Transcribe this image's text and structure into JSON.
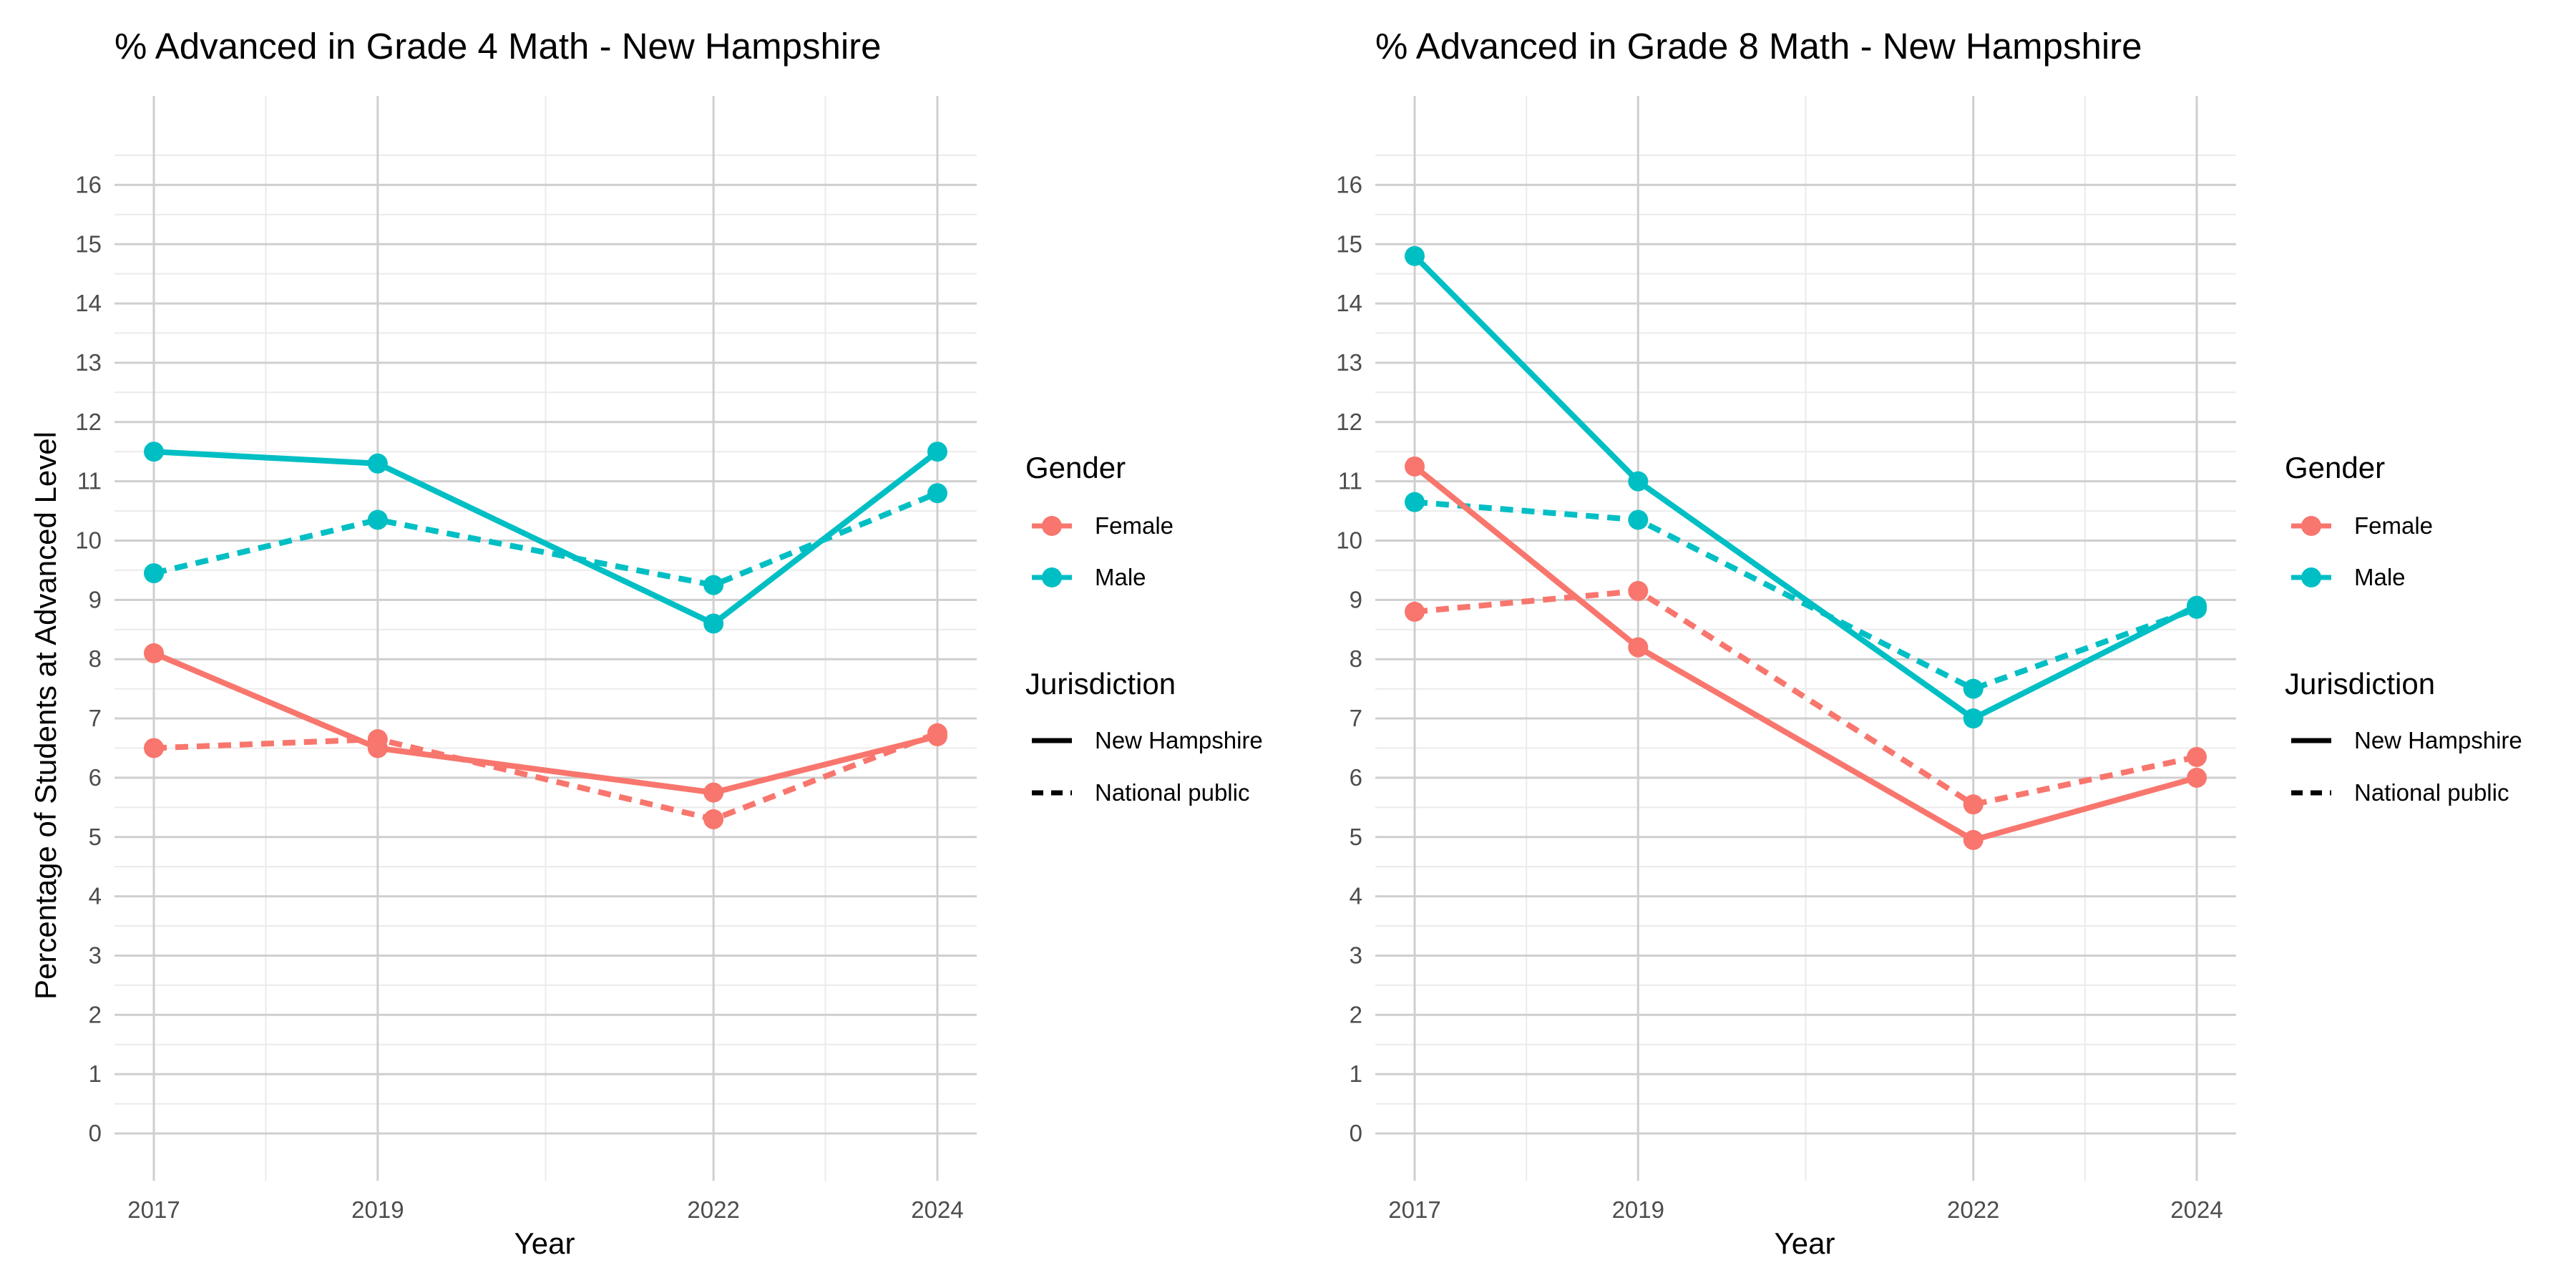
{
  "colors": {
    "Female": "#F8766D",
    "Male": "#00BFC4",
    "grid_major": "#cfcfcf",
    "grid_minor": "#ebebeb"
  },
  "chart_data": [
    {
      "type": "line",
      "title": "% Advanced in Grade 4 Math - New Hampshire",
      "xlabel": "Year",
      "ylabel": "Percentage of Students at Advanced Level",
      "x": [
        2017,
        2019,
        2022,
        2024
      ],
      "ylim": [
        -0.8,
        17.5
      ],
      "yticks": [
        0,
        1,
        2,
        3,
        4,
        5,
        6,
        7,
        8,
        9,
        10,
        11,
        12,
        13,
        14,
        15,
        16
      ],
      "grid": true,
      "legend_position": "right",
      "series": [
        {
          "name": "Female - New Hampshire",
          "gender": "Female",
          "jurisdiction": "New Hampshire",
          "values": [
            8.1,
            6.5,
            5.75,
            6.7
          ]
        },
        {
          "name": "Female - National public",
          "gender": "Female",
          "jurisdiction": "National public",
          "values": [
            6.5,
            6.65,
            5.3,
            6.75
          ]
        },
        {
          "name": "Male - New Hampshire",
          "gender": "Male",
          "jurisdiction": "New Hampshire",
          "values": [
            11.5,
            11.3,
            8.6,
            11.5
          ]
        },
        {
          "name": "Male - National public",
          "gender": "Male",
          "jurisdiction": "National public",
          "values": [
            9.45,
            10.35,
            9.25,
            10.8
          ]
        }
      ],
      "legend": {
        "gender_title": "Gender",
        "gender_items": [
          "Female",
          "Male"
        ],
        "jurisdiction_title": "Jurisdiction",
        "jurisdiction_items": [
          "New Hampshire",
          "National public"
        ]
      }
    },
    {
      "type": "line",
      "title": "% Advanced in Grade 8 Math - New Hampshire",
      "xlabel": "Year",
      "ylabel": "",
      "x": [
        2017,
        2019,
        2022,
        2024
      ],
      "ylim": [
        -0.8,
        17.5
      ],
      "yticks": [
        0,
        1,
        2,
        3,
        4,
        5,
        6,
        7,
        8,
        9,
        10,
        11,
        12,
        13,
        14,
        15,
        16
      ],
      "grid": true,
      "legend_position": "right",
      "series": [
        {
          "name": "Female - New Hampshire",
          "gender": "Female",
          "jurisdiction": "New Hampshire",
          "values": [
            11.25,
            8.2,
            4.95,
            6.0
          ]
        },
        {
          "name": "Female - National public",
          "gender": "Female",
          "jurisdiction": "National public",
          "values": [
            8.8,
            9.15,
            5.55,
            6.35
          ]
        },
        {
          "name": "Male - New Hampshire",
          "gender": "Male",
          "jurisdiction": "New Hampshire",
          "values": [
            14.8,
            11.0,
            7.0,
            8.9
          ]
        },
        {
          "name": "Male - National public",
          "gender": "Male",
          "jurisdiction": "National public",
          "values": [
            10.65,
            10.35,
            7.5,
            8.85
          ]
        }
      ],
      "legend": {
        "gender_title": "Gender",
        "gender_items": [
          "Female",
          "Male"
        ],
        "jurisdiction_title": "Jurisdiction",
        "jurisdiction_items": [
          "New Hampshire",
          "National public"
        ]
      }
    }
  ]
}
